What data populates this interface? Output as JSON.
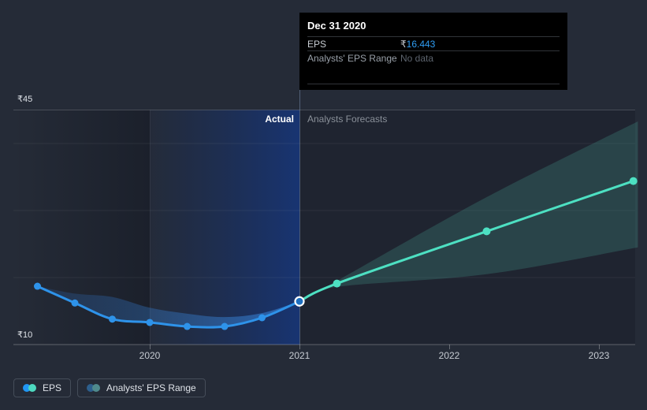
{
  "tooltip": {
    "title": "Dec 31 2020",
    "rows": [
      {
        "label": "EPS",
        "currency": "₹",
        "amount": "16.443"
      },
      {
        "label": "Analysts' EPS Range",
        "value": "No data"
      }
    ]
  },
  "header": {
    "actual": "Actual",
    "forecast": "Analysts Forecasts"
  },
  "legend": {
    "position": "bottom-left",
    "items": [
      {
        "label": "EPS",
        "dot_colors": [
          "#2196f3",
          "#4dd9c0"
        ]
      },
      {
        "label": "Analysts' EPS Range",
        "dot_colors": [
          "#2d5f8d",
          "#4f8a8d"
        ]
      }
    ]
  },
  "colors": {
    "background": "#252b37",
    "eps_blue": "#2e93ea",
    "forecast_teal": "#4de0c2",
    "tooltip_value_blue": "#2f9df3",
    "tooltip_background": "#000000"
  },
  "chart_data": {
    "type": "line",
    "title": "",
    "currency_symbol": "₹",
    "grid": true,
    "legend_position": "bottom-left",
    "x_axis": {
      "range": [
        2019.09,
        2023.27
      ],
      "ticks": [
        {
          "label": "2020",
          "year": 2020
        },
        {
          "label": "2021",
          "year": 2021
        },
        {
          "label": "2022",
          "year": 2022
        },
        {
          "label": "2023",
          "year": 2023
        }
      ]
    },
    "y_axis": {
      "range": [
        10,
        45
      ],
      "labels": [
        {
          "text": "₹45",
          "value": 45
        },
        {
          "text": "₹10",
          "value": 10
        }
      ],
      "gridline_values": [
        40,
        30,
        20
      ]
    },
    "divider_year": 2021,
    "actual_region_years": [
      2020,
      2021
    ],
    "series": [
      {
        "name": "EPS (actual)",
        "color": "#2e93ea",
        "x": [
          2019.25,
          2019.5,
          2019.75,
          2020.0,
          2020.25,
          2020.5,
          2020.75,
          2021.0
        ],
        "values": [
          18.7,
          16.2,
          13.8,
          13.3,
          12.7,
          12.7,
          14.0,
          16.443
        ]
      },
      {
        "name": "EPS (analysts forecast)",
        "color": "#4de0c2",
        "x": [
          2021.0,
          2021.25,
          2022.25,
          2023.23
        ],
        "values": [
          16.443,
          19.1,
          26.9,
          34.4
        ]
      }
    ],
    "bands": [
      {
        "name": "actual-eps-band",
        "fill": "url(#gBand)",
        "x": [
          2019.25,
          2019.5,
          2019.75,
          2020.0,
          2020.25,
          2020.5,
          2020.75,
          2021.0
        ],
        "upper": [
          18.7,
          17.6,
          17.1,
          15.5,
          14.6,
          14.1,
          14.7,
          16.443
        ],
        "lower": [
          18.7,
          16.2,
          13.8,
          13.3,
          12.7,
          12.7,
          14.0,
          16.443
        ]
      },
      {
        "name": "analysts-forecast-range",
        "fill": "rgba(88,214,190,0.18)",
        "x": [
          2021.0,
          2021.25,
          2022.25,
          2023.26
        ],
        "upper": [
          16.443,
          19.5,
          32.0,
          43.3
        ],
        "lower": [
          16.443,
          18.6,
          20.5,
          24.5
        ]
      }
    ],
    "highlight_point": {
      "series": "EPS (actual)",
      "date_label": "Dec 31 2020",
      "x": 2021.0,
      "value": 16.443
    }
  }
}
